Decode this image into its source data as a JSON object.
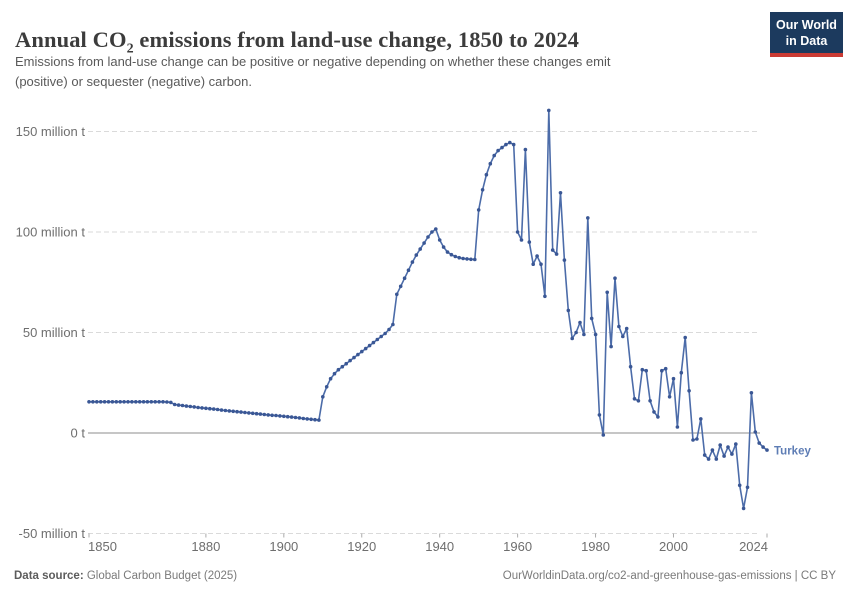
{
  "header": {
    "title_prefix": "Annual CO",
    "title_sub": "2",
    "title_suffix": " emissions from land-use change, 1850 to 2024",
    "subtitle_line1": "Emissions from land-use change can be positive or negative depending on whether these changes emit",
    "subtitle_line2": "(positive) or sequester (negative) carbon.",
    "logo_line1": "Our World",
    "logo_line2": "in Data"
  },
  "chart_data": {
    "type": "line",
    "title": "Annual CO2 emissions from land-use change, 1850 to 2024",
    "entity": "Turkey",
    "unit": "million t",
    "x_start": 1850,
    "x_end": 2024,
    "x_step": 1,
    "xlim": [
      1850,
      2024
    ],
    "ylim": [
      -50,
      163
    ],
    "grid": "dashed-horizontal",
    "legend": "end-of-line-label",
    "xticks": [
      1850,
      1880,
      1900,
      1920,
      1940,
      1960,
      1980,
      2000,
      2024
    ],
    "yticks": [
      {
        "value": 150,
        "label": "150 million t"
      },
      {
        "value": 100,
        "label": "100 million t"
      },
      {
        "value": 50,
        "label": "50 million t"
      },
      {
        "value": 0,
        "label": "0 t"
      },
      {
        "value": -50,
        "label": "-50 million t"
      }
    ],
    "series": [
      {
        "name": "Turkey",
        "values": [
          15.5,
          15.5,
          15.5,
          15.5,
          15.5,
          15.5,
          15.5,
          15.5,
          15.5,
          15.5,
          15.5,
          15.5,
          15.5,
          15.5,
          15.5,
          15.5,
          15.5,
          15.5,
          15.5,
          15.5,
          15.4,
          15.2,
          14.2,
          13.9,
          13.7,
          13.4,
          13.2,
          13.0,
          12.7,
          12.5,
          12.3,
          12.1,
          11.9,
          11.7,
          11.4,
          11.2,
          11.0,
          10.8,
          10.6,
          10.4,
          10.2,
          10.0,
          9.8,
          9.6,
          9.4,
          9.2,
          9.0,
          8.8,
          8.7,
          8.5,
          8.3,
          8.1,
          7.9,
          7.7,
          7.5,
          7.2,
          7.0,
          6.8,
          6.6,
          6.4,
          18,
          23,
          27,
          29.5,
          31.5,
          33,
          34.5,
          36,
          37.5,
          39,
          40.5,
          42,
          43.5,
          45,
          46.5,
          48,
          49.5,
          51.5,
          54,
          69,
          73,
          77,
          81,
          85,
          88.5,
          91.5,
          94.5,
          97.5,
          100,
          101.5,
          96,
          92.5,
          90,
          88.7,
          87.8,
          87.2,
          86.8,
          86.6,
          86.4,
          86.3,
          111,
          121,
          128.5,
          134,
          138,
          140.5,
          142,
          143.5,
          144.5,
          143.5,
          100,
          96,
          141,
          95,
          84,
          88,
          84,
          68,
          160.5,
          91,
          89,
          119.5,
          86,
          61,
          47,
          50,
          55,
          49,
          107,
          57,
          49,
          9,
          -1,
          70,
          43,
          77,
          53,
          48,
          52,
          33,
          17,
          16,
          31.5,
          31,
          16,
          10.5,
          8,
          31,
          32,
          18,
          27,
          3,
          30,
          47.5,
          21,
          -3.5,
          -3,
          7,
          -11,
          -13,
          -8.5,
          -13,
          -6,
          -11.5,
          -7,
          -10.5,
          -5.5,
          -26,
          -37.5,
          -27,
          20,
          0.5,
          -5,
          -7,
          -8.5
        ]
      }
    ]
  },
  "footer": {
    "source_label": "Data source:",
    "source_value": " Global Carbon Budget (2025)",
    "credit": "OurWorldinData.org/co2-and-greenhouse-gas-emissions | CC BY"
  },
  "colors": {
    "line": "#4C6CA9",
    "marker": "#3A5795",
    "end_label": "#5E7DB5",
    "grid": "#DADADA",
    "zero_line": "#8E8E8E",
    "tick": "#ABABAB",
    "axis_text": "#6E6E6E",
    "logo_navy": "#1C3A5E",
    "logo_red": "#CB3B34"
  }
}
